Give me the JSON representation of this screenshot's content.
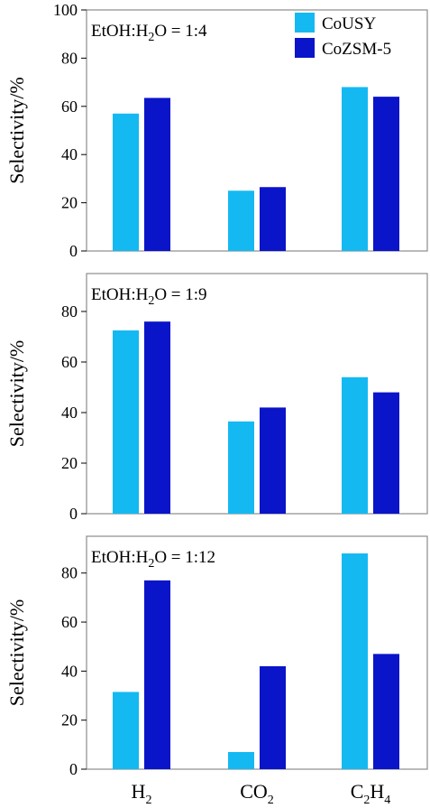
{
  "colors": {
    "series_a": "#14B9F2",
    "series_b": "#0A14C8"
  },
  "legend": {
    "position": "top-right",
    "items": [
      "CoUSY",
      "CoZSM-5"
    ]
  },
  "category_labels": [
    {
      "main": "H",
      "sub": "2",
      "tail": ""
    },
    {
      "main": "CO",
      "sub": "2",
      "tail": ""
    },
    {
      "main": "C",
      "sub": "2",
      "tail": "H",
      "sub2": "4"
    }
  ],
  "chart_data": [
    {
      "type": "bar",
      "annotation": {
        "prefix": "EtOH:H",
        "sub": "2",
        "suffix": "O = 1:4"
      },
      "categories": [
        "H2",
        "CO2",
        "C2H4"
      ],
      "series": [
        {
          "name": "CoUSY",
          "values": [
            57,
            25,
            68
          ]
        },
        {
          "name": "CoZSM-5",
          "values": [
            63.5,
            26.5,
            64
          ]
        }
      ],
      "ylabel": "Selectivity/%",
      "ylim": [
        0,
        100
      ],
      "yticks": [
        0,
        20,
        40,
        60,
        80,
        100
      ],
      "grid": false
    },
    {
      "type": "bar",
      "annotation": {
        "prefix": "EtOH:H",
        "sub": "2",
        "suffix": "O = 1:9"
      },
      "categories": [
        "H2",
        "CO2",
        "C2H4"
      ],
      "series": [
        {
          "name": "CoUSY",
          "values": [
            72.5,
            36.5,
            54
          ]
        },
        {
          "name": "CoZSM-5",
          "values": [
            76,
            42,
            48
          ]
        }
      ],
      "ylabel": "Selectivity/%",
      "ylim": [
        0,
        95
      ],
      "yticks": [
        0,
        20,
        40,
        60,
        80
      ],
      "grid": false
    },
    {
      "type": "bar",
      "annotation": {
        "prefix": "EtOH:H",
        "sub": "2",
        "suffix": "O = 1:12"
      },
      "categories": [
        "H2",
        "CO2",
        "C2H4"
      ],
      "series": [
        {
          "name": "CoUSY",
          "values": [
            31.5,
            7,
            88
          ]
        },
        {
          "name": "CoZSM-5",
          "values": [
            77,
            42,
            47
          ]
        }
      ],
      "ylabel": "Selectivity/%",
      "ylim": [
        0,
        95
      ],
      "yticks": [
        0,
        20,
        40,
        60,
        80
      ],
      "grid": false
    }
  ]
}
